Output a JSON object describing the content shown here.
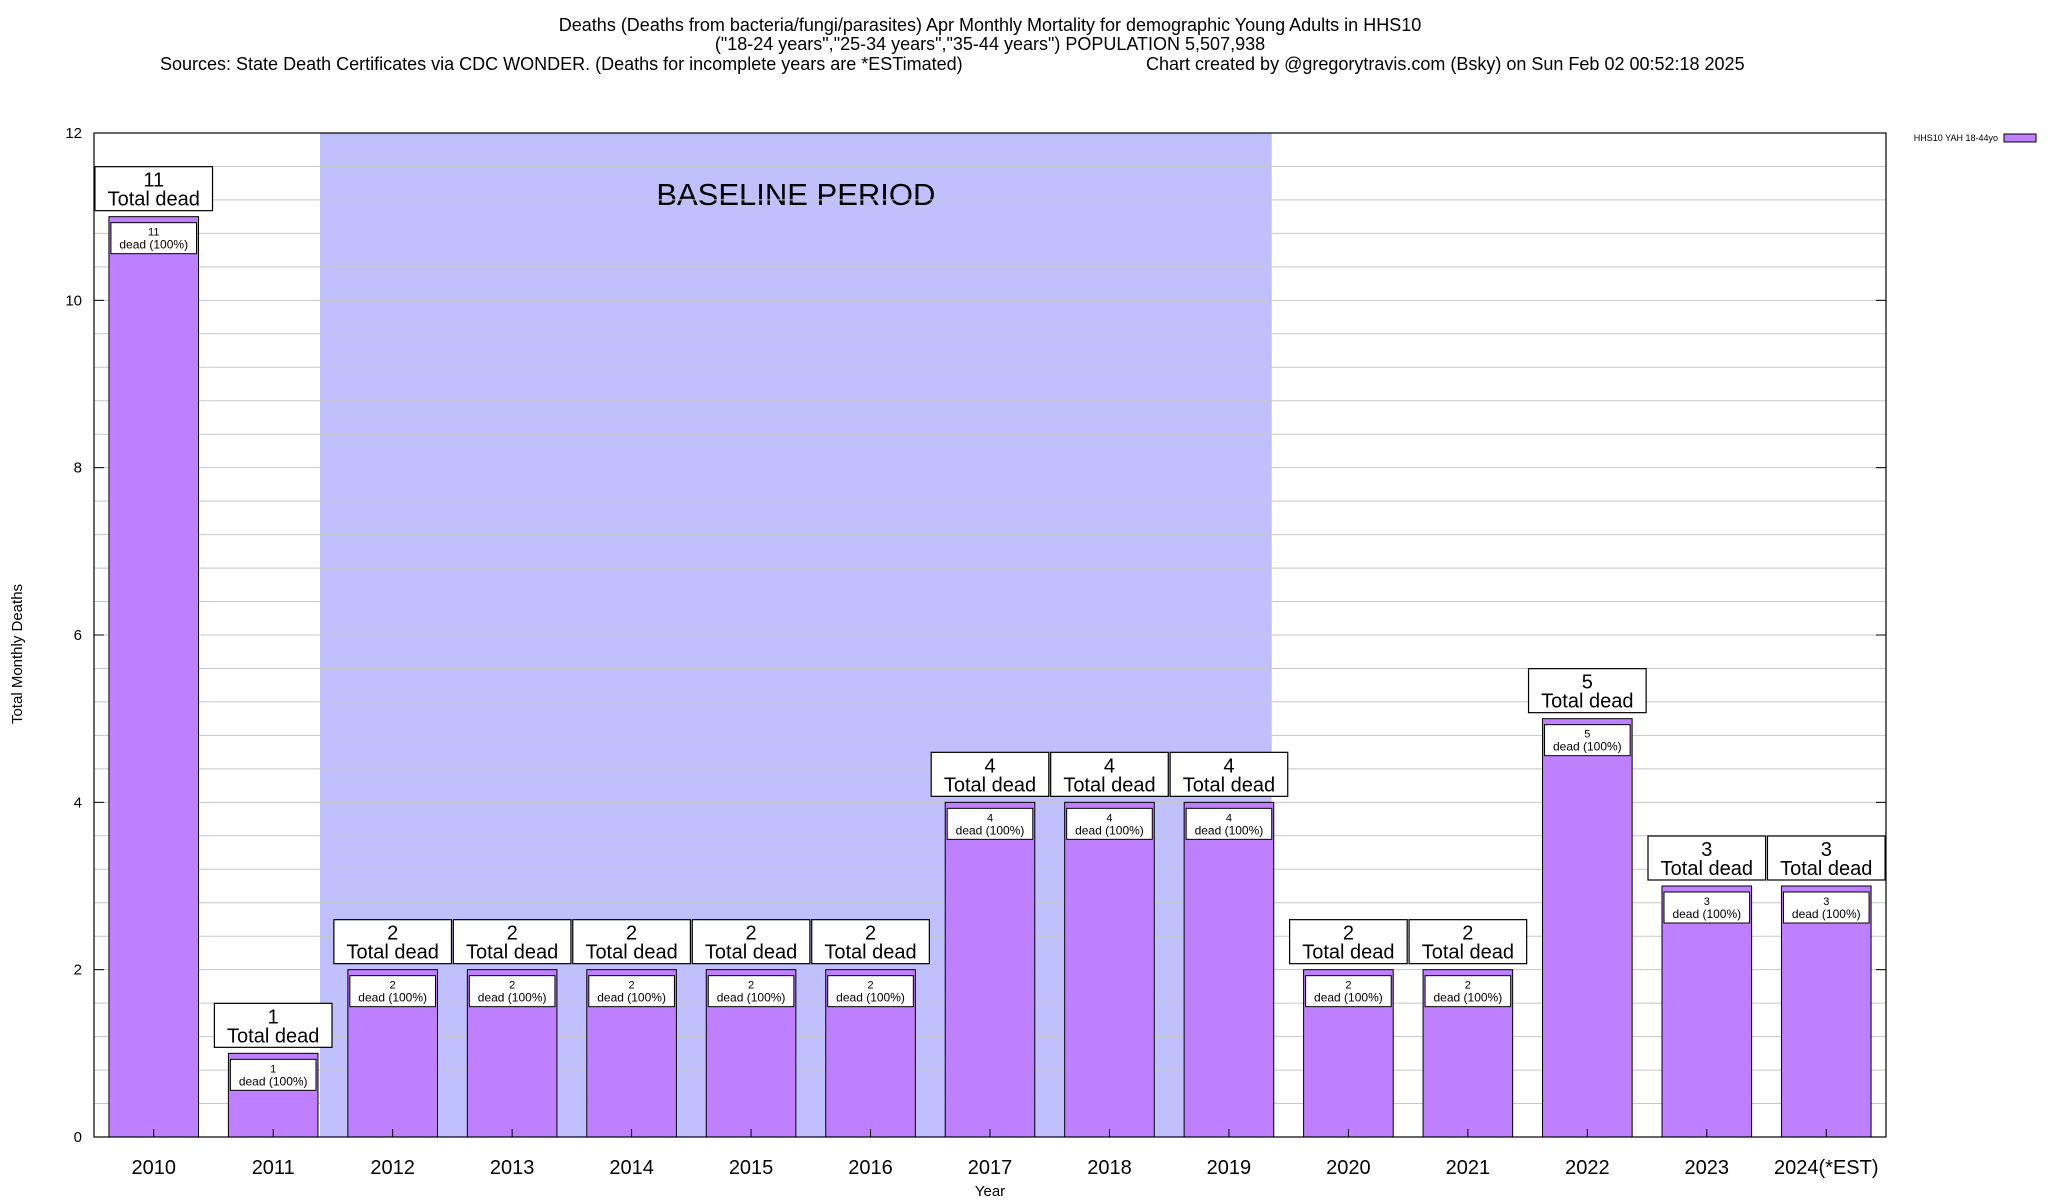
{
  "chart_data": {
    "type": "bar",
    "title_lines": [
      "Deaths (Deaths from bacteria/fungi/parasites) Apr Monthly Mortality for demographic Young Adults in HHS10",
      "(\"18-24 years\",\"25-34 years\",\"35-44 years\") POPULATION 5,507,938",
      "Sources: State Death Certificates via CDC WONDER. (Deaths for incomplete years are *ESTimated)",
      "Chart created by @gregorytravis.com (Bsky) on Sun Feb 02 00:52:18 2025"
    ],
    "xlabel": "Year",
    "ylabel": "Total Monthly Deaths",
    "ylim": [
      0,
      12
    ],
    "y_ticks": [
      "0",
      "2",
      "4",
      "6",
      "8",
      "10",
      "12"
    ],
    "categories": [
      "2010",
      "2011",
      "2012",
      "2013",
      "2014",
      "2015",
      "2016",
      "2017",
      "2018",
      "2019",
      "2020",
      "2021",
      "2022",
      "2023",
      "2024(*EST)"
    ],
    "series": [
      {
        "name": "HHS10 YAH 18-44yo",
        "values": [
          11,
          1,
          2,
          2,
          2,
          2,
          2,
          4,
          4,
          4,
          2,
          2,
          5,
          3,
          3
        ],
        "color": "#bf80ff"
      }
    ],
    "total_label_suffix": "Total dead",
    "inner_label_suffix": "dead (100%)",
    "baseline": {
      "label": "BASELINE PERIOD",
      "from_category": "2012",
      "to_category": "2019",
      "color": "#c0c0ff"
    },
    "grid": true,
    "legend_position": "top-right"
  }
}
